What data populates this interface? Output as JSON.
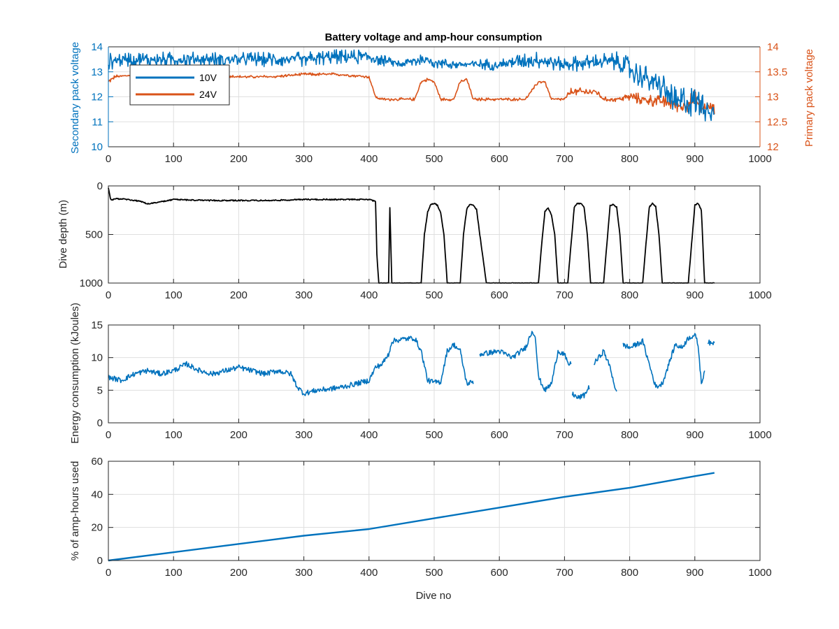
{
  "colors": {
    "blue": "#0072BD",
    "orange": "#D95319",
    "black": "#000000",
    "grid": "#DFDFDF",
    "axis": "#262626"
  },
  "chart_data": [
    {
      "type": "line",
      "title": "Battery voltage and amp-hour consumption",
      "xlabel": "",
      "ylabel_left": "Secondary pack voltage",
      "ylabel_right": "Primary pack voltage",
      "xlim": [
        0,
        1000
      ],
      "ylim_left": [
        10,
        14
      ],
      "ylim_right": [
        12,
        14
      ],
      "xticks": [
        "0",
        "100",
        "200",
        "300",
        "400",
        "500",
        "600",
        "700",
        "800",
        "900",
        "1000"
      ],
      "yticks_left": [
        "10",
        "11",
        "12",
        "13",
        "14"
      ],
      "yticks_right": [
        "12",
        "12.5",
        "13",
        "13.5",
        "14"
      ],
      "grid": true,
      "legend": {
        "placement": "top-left",
        "entries": [
          "10V",
          "24V"
        ]
      },
      "series": [
        {
          "name": "10V",
          "axis": "left",
          "x": [
            0,
            20,
            50,
            100,
            150,
            200,
            250,
            300,
            350,
            400,
            430,
            450,
            480,
            500,
            520,
            550,
            600,
            650,
            700,
            750,
            780,
            800,
            820,
            850,
            870,
            880,
            900,
            910,
            920,
            930
          ],
          "y": [
            13.4,
            13.5,
            13.5,
            13.5,
            13.5,
            13.5,
            13.5,
            13.5,
            13.6,
            13.6,
            13.4,
            13.3,
            13.5,
            13.4,
            13.3,
            13.3,
            13.3,
            13.5,
            13.3,
            13.4,
            13.4,
            13.1,
            12.8,
            12.4,
            11.7,
            11.8,
            11.8,
            11.9,
            11.5,
            11.5
          ],
          "noise": [
            0.35,
            0.3,
            0.3,
            0.3,
            0.3,
            0.3,
            0.3,
            0.3,
            0.3,
            0.3,
            0.2,
            0.15,
            0.3,
            0.25,
            0.2,
            0.2,
            0.25,
            0.35,
            0.3,
            0.35,
            0.4,
            0.5,
            0.5,
            0.6,
            0.7,
            0.7,
            0.6,
            0.7,
            0.6,
            0.5
          ]
        },
        {
          "name": "24V",
          "axis": "right",
          "x": [
            0,
            10,
            50,
            100,
            150,
            200,
            250,
            300,
            350,
            400,
            410,
            420,
            440,
            470,
            480,
            490,
            500,
            510,
            530,
            540,
            550,
            560,
            580,
            600,
            620,
            640,
            660,
            670,
            680,
            700,
            710,
            720,
            750,
            760,
            780,
            800,
            820,
            850,
            870,
            880,
            900,
            910,
            920,
            930
          ],
          "y": [
            13.3,
            13.4,
            13.45,
            13.45,
            13.45,
            13.4,
            13.4,
            13.45,
            13.45,
            13.4,
            13.0,
            12.95,
            12.95,
            12.95,
            13.3,
            13.35,
            13.3,
            12.95,
            12.95,
            13.3,
            13.35,
            12.95,
            12.95,
            12.95,
            12.95,
            12.95,
            13.3,
            13.3,
            12.95,
            12.95,
            13.1,
            13.1,
            13.1,
            12.95,
            12.95,
            13.0,
            12.95,
            12.9,
            12.85,
            12.8,
            12.95,
            12.75,
            12.8,
            12.75
          ],
          "noise": [
            0.05,
            0.04,
            0.03,
            0.03,
            0.03,
            0.03,
            0.03,
            0.03,
            0.03,
            0.03,
            0.03,
            0.03,
            0.03,
            0.03,
            0.03,
            0.03,
            0.03,
            0.03,
            0.03,
            0.03,
            0.03,
            0.03,
            0.03,
            0.03,
            0.03,
            0.03,
            0.03,
            0.03,
            0.03,
            0.03,
            0.08,
            0.08,
            0.08,
            0.05,
            0.05,
            0.1,
            0.12,
            0.12,
            0.15,
            0.15,
            0.2,
            0.15,
            0.12,
            0.1
          ]
        }
      ]
    },
    {
      "type": "line",
      "title": "",
      "xlabel": "",
      "ylabel": "Dive depth (m)",
      "xlim": [
        0,
        1000
      ],
      "ylim": [
        0,
        1000
      ],
      "y_reversed": true,
      "xticks": [
        "0",
        "100",
        "200",
        "300",
        "400",
        "500",
        "600",
        "700",
        "800",
        "900",
        "1000"
      ],
      "yticks": [
        "0",
        "500",
        "1000"
      ],
      "grid": true,
      "series": [
        {
          "name": "",
          "x": [
            0,
            3,
            5,
            10,
            30,
            50,
            60,
            80,
            100,
            150,
            200,
            250,
            300,
            350,
            400,
            410,
            412,
            415,
            420,
            425,
            430,
            432,
            435,
            440,
            450,
            470,
            480,
            485,
            490,
            495,
            500,
            505,
            510,
            515,
            520,
            530,
            540,
            545,
            550,
            555,
            560,
            565,
            570,
            580,
            600,
            640,
            650,
            660,
            665,
            670,
            675,
            680,
            685,
            690,
            700,
            705,
            710,
            715,
            720,
            725,
            730,
            735,
            740,
            750,
            760,
            765,
            770,
            775,
            780,
            785,
            790,
            800,
            810,
            820,
            825,
            830,
            835,
            840,
            845,
            850,
            860,
            870,
            880,
            890,
            895,
            900,
            905,
            910,
            915,
            920,
            930
          ],
          "y": [
            20,
            120,
            150,
            130,
            140,
            160,
            185,
            165,
            140,
            150,
            150,
            150,
            140,
            140,
            140,
            160,
            700,
            1000,
            1000,
            1000,
            1000,
            230,
            1000,
            1000,
            1000,
            1000,
            1000,
            500,
            270,
            190,
            180,
            200,
            280,
            500,
            1000,
            1000,
            1000,
            500,
            240,
            190,
            200,
            240,
            500,
            1000,
            1000,
            1000,
            1000,
            1000,
            600,
            260,
            230,
            300,
            500,
            1000,
            1000,
            1000,
            600,
            220,
            180,
            180,
            220,
            500,
            1000,
            1000,
            1000,
            600,
            200,
            190,
            220,
            500,
            1000,
            1000,
            1000,
            1000,
            600,
            220,
            180,
            210,
            500,
            1000,
            1000,
            1000,
            1000,
            1000,
            600,
            200,
            180,
            250,
            1000,
            1000,
            1000
          ]
        }
      ]
    },
    {
      "type": "line",
      "title": "",
      "xlabel": "",
      "ylabel": "Energy consumption (kJoules)",
      "xlim": [
        0,
        1000
      ],
      "ylim": [
        0,
        15
      ],
      "xticks": [
        "0",
        "100",
        "200",
        "300",
        "400",
        "500",
        "600",
        "700",
        "800",
        "900",
        "1000"
      ],
      "yticks": [
        "0",
        "5",
        "10",
        "15"
      ],
      "grid": true,
      "series": [
        {
          "name": "",
          "segments": [
            {
              "x": [
                0,
                20,
                40,
                60,
                80,
                100,
                120,
                140,
                160,
                180,
                200,
                220,
                240,
                260,
                280,
                290,
                300,
                320,
                340,
                360,
                380,
                400,
                410,
                420,
                430,
                435,
                450,
                470,
                480,
                490,
                500,
                510,
                520,
                530,
                540,
                550,
                560
              ],
              "y": [
                7,
                6.5,
                7.5,
                8,
                7.5,
                8,
                9,
                8,
                7.5,
                8,
                8.5,
                8,
                7.5,
                8,
                7.5,
                5.5,
                4.5,
                5,
                5.2,
                5.5,
                6,
                6.5,
                8.5,
                9,
                10.5,
                12.5,
                12.8,
                13,
                11,
                6.5,
                6.2,
                6.3,
                11,
                12,
                11,
                6,
                6.3
              ]
            },
            {
              "x": [
                570,
                600,
                620,
                640,
                650,
                655,
                660,
                670,
                680,
                690,
                700,
                705,
                710
              ],
              "y": [
                10.5,
                11,
                10,
                11.5,
                14,
                13.5,
                7,
                5,
                6,
                11,
                10.5,
                9,
                9
              ]
            },
            {
              "x": [
                712,
                720,
                730,
                738
              ],
              "y": [
                4.5,
                3.8,
                4.2,
                5.5
              ]
            },
            {
              "x": [
                745,
                760,
                770,
                780
              ],
              "y": [
                9,
                11,
                8.5,
                4.5
              ]
            },
            {
              "x": [
                790,
                800,
                820,
                830,
                840,
                850,
                870,
                880,
                890,
                900,
                905,
                910,
                915
              ],
              "y": [
                12,
                11.5,
                12.5,
                9,
                5.5,
                6,
                12,
                11.5,
                13,
                13.5,
                12,
                6,
                8
              ]
            },
            {
              "x": [
                920,
                925,
                930
              ],
              "y": [
                12.5,
                12,
                12.5
              ]
            }
          ],
          "noise": 0.4
        }
      ]
    },
    {
      "type": "line",
      "title": "",
      "xlabel": "Dive no",
      "ylabel": "% of amp-hours used",
      "xlim": [
        0,
        1000
      ],
      "ylim": [
        0,
        60
      ],
      "xticks": [
        "0",
        "100",
        "200",
        "300",
        "400",
        "500",
        "600",
        "700",
        "800",
        "900",
        "1000"
      ],
      "yticks": [
        "0",
        "20",
        "40",
        "60"
      ],
      "grid": true,
      "series": [
        {
          "name": "",
          "x": [
            0,
            100,
            200,
            300,
            400,
            500,
            600,
            700,
            800,
            900,
            930
          ],
          "y": [
            0,
            5,
            10,
            15,
            19,
            25.5,
            32,
            38.5,
            44,
            51,
            53
          ]
        }
      ]
    }
  ]
}
